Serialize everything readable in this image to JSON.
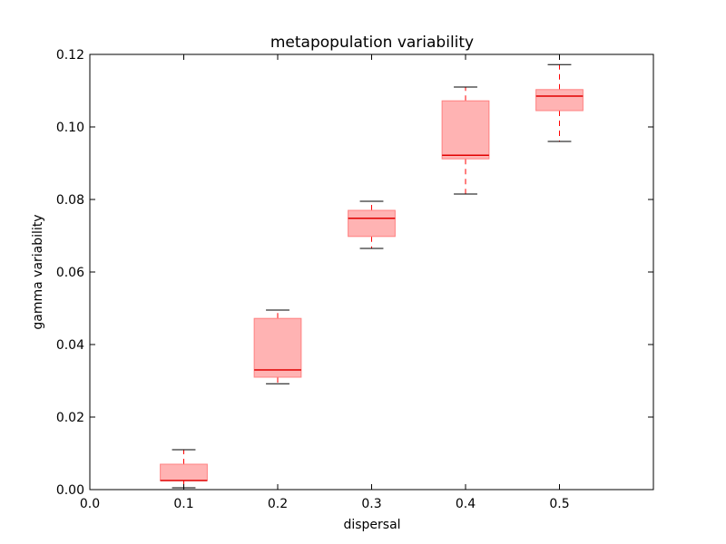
{
  "chart_data": {
    "type": "boxplot",
    "title": "metapopulation variability",
    "xlabel": "dispersal",
    "ylabel": "gamma variability",
    "xlim": [
      0.0,
      0.6
    ],
    "ylim": [
      0.0,
      0.12
    ],
    "x_ticks": [
      "0.0",
      "0.1",
      "0.2",
      "0.3",
      "0.4",
      "0.5"
    ],
    "y_ticks": [
      "0.00",
      "0.02",
      "0.04",
      "0.06",
      "0.08",
      "0.10",
      "0.12"
    ],
    "grid": false,
    "colors": {
      "box_fill": "#ffb3b3",
      "box_edge": "#ff8080",
      "median": "#e00000",
      "whisker": "#ff0000",
      "cap": "#000000"
    },
    "boxes": [
      {
        "x": 0.1,
        "whisker_low": 0.0005,
        "q1": 0.0025,
        "median": 0.0025,
        "q3": 0.007,
        "whisker_high": 0.011
      },
      {
        "x": 0.2,
        "whisker_low": 0.0292,
        "q1": 0.031,
        "median": 0.033,
        "q3": 0.0472,
        "whisker_high": 0.0495
      },
      {
        "x": 0.3,
        "whisker_low": 0.0665,
        "q1": 0.0698,
        "median": 0.0748,
        "q3": 0.077,
        "whisker_high": 0.0795
      },
      {
        "x": 0.4,
        "whisker_low": 0.0815,
        "q1": 0.0912,
        "median": 0.0922,
        "q3": 0.1072,
        "whisker_high": 0.111
      },
      {
        "x": 0.5,
        "whisker_low": 0.096,
        "q1": 0.1045,
        "median": 0.1085,
        "q3": 0.1103,
        "whisker_high": 0.1172
      }
    ]
  }
}
